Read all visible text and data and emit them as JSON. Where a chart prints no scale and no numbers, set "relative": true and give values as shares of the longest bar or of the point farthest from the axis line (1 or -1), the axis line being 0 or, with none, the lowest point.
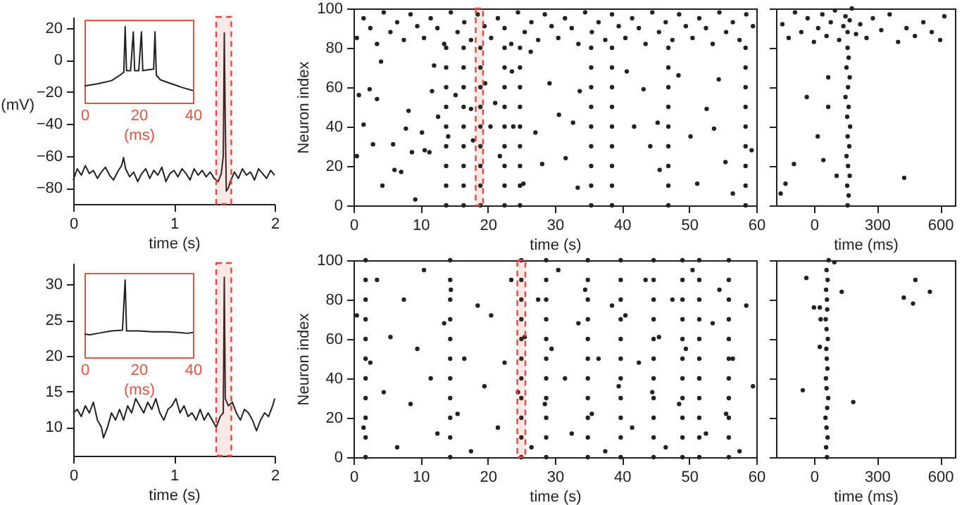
{
  "chart_data": [
    {
      "type": "line",
      "ylabel": "(mV)",
      "xlabel": "time (s)",
      "xlim": [
        0,
        2
      ],
      "xticks": [
        0,
        1,
        2
      ],
      "ylim": [
        -90,
        27
      ],
      "yticks": [
        -80,
        -60,
        -40,
        -20,
        0,
        20
      ],
      "color": "#222222",
      "x": [
        0,
        0.04,
        0.08,
        0.12,
        0.16,
        0.2,
        0.24,
        0.28,
        0.32,
        0.36,
        0.4,
        0.44,
        0.48,
        0.5,
        0.52,
        0.56,
        0.6,
        0.64,
        0.68,
        0.72,
        0.76,
        0.8,
        0.84,
        0.88,
        0.92,
        0.96,
        1.0,
        1.04,
        1.08,
        1.12,
        1.16,
        1.2,
        1.24,
        1.28,
        1.32,
        1.36,
        1.4,
        1.44,
        1.47,
        1.49,
        1.5,
        1.51,
        1.52,
        1.54,
        1.56,
        1.6,
        1.64,
        1.68,
        1.72,
        1.76,
        1.8,
        1.84,
        1.88,
        1.92,
        1.96,
        2.0
      ],
      "values": [
        -75,
        -68,
        -72,
        -66,
        -71,
        -69,
        -74,
        -70,
        -67,
        -72,
        -75,
        -70,
        -66,
        -61,
        -68,
        -73,
        -70,
        -76,
        -71,
        -68,
        -74,
        -69,
        -72,
        -67,
        -76,
        -71,
        -69,
        -73,
        -68,
        -71,
        -75,
        -68,
        -72,
        -69,
        -73,
        -70,
        -74,
        -76,
        -71,
        -60,
        17,
        -40,
        -82,
        -80,
        -76,
        -70,
        -74,
        -68,
        -72,
        -70,
        -75,
        -68,
        -71,
        -74,
        -69,
        -72
      ],
      "bands": [
        {
          "axis": "x",
          "from": 1.42,
          "to": 1.57,
          "color": "#e8473b"
        }
      ]
    },
    {
      "type": "line",
      "relative": true,
      "xlabel": "(ms)",
      "xlim": [
        0,
        40
      ],
      "xticks": [
        0,
        20,
        40
      ],
      "tick_labels": "x",
      "color": "#222222",
      "x": [
        0,
        5,
        10,
        13,
        14.5,
        15,
        15.5,
        17,
        18,
        18.5,
        20,
        21,
        21.5,
        23,
        25.5,
        26,
        26.5,
        28,
        32,
        36,
        40
      ],
      "values": [
        0.22,
        0.25,
        0.29,
        0.36,
        0.4,
        1,
        0.42,
        0.42,
        0.93,
        0.42,
        0.42,
        0.93,
        0.42,
        0.43,
        0.44,
        0.93,
        0.36,
        0.3,
        0.25,
        0.2,
        0.16
      ]
    },
    {
      "type": "scatter",
      "marker": "circle",
      "ylabel": "Neuron index",
      "xlabel": "time (s)",
      "xlim": [
        0,
        60
      ],
      "xticks": [
        0,
        10,
        20,
        30,
        40,
        50,
        60
      ],
      "ylim": [
        0,
        100
      ],
      "yticks": [
        0,
        20,
        40,
        60,
        80,
        100
      ],
      "series": [
        {
          "color": "#222222",
          "x": [
            13.8,
            13.8,
            13.8,
            13.8,
            13.8,
            13.8,
            13.8,
            13.8,
            13.8,
            16.4,
            16.4,
            16.4,
            16.4,
            16.4,
            16.4,
            16.4,
            16.4,
            16.4,
            18.9,
            18.9,
            18.9,
            18.9,
            18.9,
            18.9,
            18.9,
            18.9,
            18.9,
            22.5,
            22.5,
            22.5,
            22.5,
            22.5,
            22.5,
            22.5,
            22.5,
            22.5,
            24.8,
            24.8,
            24.8,
            24.8,
            24.8,
            24.8,
            24.8,
            24.8,
            24.8,
            35.4,
            35.4,
            35.4,
            35.4,
            35.4,
            35.4,
            35.4,
            35.4,
            35.4,
            38.5,
            38.5,
            38.5,
            38.5,
            38.5,
            38.5,
            38.5,
            38.5,
            38.5,
            46.9,
            46.9,
            46.9,
            46.9,
            46.9,
            46.9,
            46.9,
            46.9,
            46.9,
            58.4,
            58.4,
            58.4,
            58.4,
            58.4,
            58.4,
            58.4,
            58.4,
            58.4
          ],
          "values": [
            0,
            10,
            20,
            30,
            40,
            50,
            60,
            70,
            80,
            0,
            10,
            20,
            30,
            40,
            50,
            60,
            70,
            80,
            0,
            10,
            20,
            30,
            40,
            50,
            60,
            70,
            80,
            0,
            10,
            20,
            30,
            40,
            50,
            60,
            70,
            80,
            0,
            10,
            20,
            30,
            40,
            50,
            60,
            70,
            80,
            0,
            10,
            20,
            30,
            40,
            50,
            60,
            70,
            80,
            0,
            10,
            20,
            30,
            40,
            50,
            60,
            70,
            80,
            0,
            10,
            20,
            30,
            40,
            50,
            60,
            70,
            80,
            0,
            10,
            20,
            30,
            40,
            50,
            60,
            70,
            80
          ]
        },
        {
          "color": "#222222",
          "x": [
            0.5,
            1.5,
            2.5,
            3.5,
            4.5,
            5.5,
            6.5,
            7.5,
            8.5,
            9.5,
            10.5,
            11.5,
            12.5,
            13.5,
            14.5,
            15.5,
            16.5,
            17.5,
            18.5,
            19.5,
            20.5,
            21.5,
            22.5,
            23.5,
            24.5,
            25.5,
            26.5,
            27.5,
            28.5,
            29.5,
            30.5,
            31.5,
            32.5,
            33.5,
            34.5,
            35.5,
            36.5,
            37.5,
            38.5,
            39.5,
            40.5,
            41.5,
            42.5,
            43.5,
            44.5,
            45.5,
            46.5,
            47.5,
            48.5,
            49.5,
            50.5,
            51.5,
            52.5,
            53.5,
            54.5,
            55.5,
            56.5,
            57.5,
            58.5,
            59.5
          ],
          "values": [
            85,
            95,
            90,
            82,
            98,
            88,
            93,
            84,
            97,
            91,
            85,
            95,
            90,
            82,
            98,
            88,
            93,
            84,
            97,
            91,
            85,
            95,
            90,
            82,
            98,
            88,
            93,
            84,
            97,
            91,
            85,
            95,
            90,
            82,
            98,
            88,
            93,
            84,
            97,
            91,
            85,
            95,
            90,
            82,
            98,
            88,
            93,
            84,
            97,
            91,
            85,
            95,
            90,
            82,
            98,
            88,
            93,
            84,
            97,
            91
          ]
        },
        {
          "color": "#222222",
          "x": [
            0.5,
            0.8,
            1.5,
            2.9,
            3.5,
            2.4,
            4.1,
            4.3,
            6.1,
            5.9,
            7.1,
            7.8,
            8.2,
            8.7,
            9.2,
            10.2,
            10.6,
            11.3,
            11.7,
            12,
            12.6,
            14.1,
            15.2,
            17.5,
            17.8,
            19.6,
            20.4,
            21.1,
            21.8,
            23.6,
            23.8,
            25.3,
            26.4,
            27.1,
            28.1,
            29.2,
            30.6,
            31.6,
            32.7,
            33.4,
            33.7,
            40.7,
            41.8,
            43.2,
            44.2,
            45.3,
            45.6,
            48.4,
            50.2,
            51.2,
            52.6,
            53.7,
            54.4,
            55.4,
            56.5,
            59.3
          ],
          "values": [
            25,
            56,
            41,
            31,
            54,
            59,
            73,
            10,
            18,
            31,
            17,
            39,
            48,
            27,
            3,
            37,
            28,
            27,
            58,
            71,
            45,
            35,
            56,
            49,
            33,
            62,
            40,
            52,
            25,
            68,
            40,
            11,
            78,
            37,
            21,
            62,
            46,
            24,
            42,
            9,
            58,
            68,
            40,
            59,
            30,
            42,
            18,
            66,
            35,
            11,
            49,
            39,
            64,
            22,
            6,
            28
          ]
        }
      ],
      "bands": [
        {
          "axis": "x",
          "from": 18.2,
          "to": 19.3,
          "color": "#e8473b"
        }
      ]
    },
    {
      "type": "scatter",
      "marker": "circle",
      "xlabel": "time (ms)",
      "xlim": [
        -180,
        670
      ],
      "xticks": [
        0,
        300,
        600
      ],
      "ylim": [
        0,
        100
      ],
      "yticks": [
        0,
        20,
        40,
        60,
        80,
        100
      ],
      "tick_labels": "x",
      "series": [
        {
          "color": "#222222",
          "x": [
            160,
            165,
            158,
            170,
            162,
            155,
            168,
            160,
            172,
            158,
            165,
            150,
            162,
            170,
            155,
            165,
            160
          ],
          "values": [
            0,
            5,
            10,
            15,
            20,
            25,
            30,
            35,
            40,
            45,
            50,
            55,
            60,
            65,
            70,
            75,
            80
          ]
        },
        {
          "color": "#222222",
          "x": [
            -150,
            -120,
            -90,
            -60,
            -30,
            0,
            20,
            40,
            60,
            80,
            100,
            120,
            140,
            150,
            160,
            170,
            180,
            200,
            220,
            250,
            280,
            320,
            360,
            400,
            440,
            480,
            520,
            560,
            600,
            620
          ],
          "values": [
            92,
            85,
            98,
            88,
            95,
            83,
            90,
            97,
            86,
            93,
            99,
            84,
            91,
            96,
            88,
            94,
            100,
            87,
            92,
            85,
            95,
            89,
            97,
            83,
            90,
            86,
            93,
            88,
            84,
            96
          ]
        },
        {
          "color": "#222222",
          "x": [
            -95,
            -135,
            -158,
            -34,
            68,
            68,
            18,
            45,
            429,
            108
          ],
          "values": [
            21,
            11,
            6,
            55,
            50,
            65,
            35,
            23,
            14,
            15
          ]
        }
      ]
    },
    {
      "type": "line",
      "xlabel": "time (s)",
      "xlim": [
        0,
        2
      ],
      "xticks": [
        0,
        1,
        2
      ],
      "ylim": [
        6,
        33
      ],
      "yticks": [
        10,
        15,
        20,
        25,
        30
      ],
      "color": "#222222",
      "x": [
        0,
        0.04,
        0.08,
        0.12,
        0.16,
        0.2,
        0.24,
        0.28,
        0.3,
        0.34,
        0.38,
        0.42,
        0.46,
        0.5,
        0.54,
        0.58,
        0.62,
        0.66,
        0.7,
        0.74,
        0.78,
        0.82,
        0.86,
        0.9,
        0.94,
        0.98,
        1.02,
        1.06,
        1.1,
        1.14,
        1.18,
        1.22,
        1.26,
        1.3,
        1.34,
        1.38,
        1.42,
        1.46,
        1.49,
        1.5,
        1.51,
        1.54,
        1.58,
        1.62,
        1.66,
        1.7,
        1.74,
        1.78,
        1.82,
        1.86,
        1.9,
        1.94,
        1.98,
        2.0
      ],
      "values": [
        12,
        12.5,
        11.5,
        13,
        12,
        13.5,
        11,
        10,
        8.5,
        10,
        12,
        11,
        12.5,
        11,
        13,
        12,
        14,
        13,
        12,
        13.5,
        12.5,
        14,
        12,
        11,
        12.5,
        13,
        14,
        12,
        13,
        11.5,
        12,
        11,
        12.5,
        11,
        12,
        11,
        10,
        11.5,
        12,
        31,
        14,
        13,
        13.5,
        12,
        11,
        12.5,
        12,
        11,
        9.5,
        11,
        12,
        11.5,
        13,
        14
      ],
      "bands": [
        {
          "axis": "x",
          "from": 1.42,
          "to": 1.57,
          "color": "#e8473b"
        }
      ]
    },
    {
      "type": "line",
      "relative": true,
      "xlabel": "(ms)",
      "xlim": [
        0,
        40
      ],
      "xticks": [
        0,
        20,
        40
      ],
      "tick_labels": "x",
      "color": "#222222",
      "x": [
        0,
        2,
        5,
        10,
        14,
        15,
        15.5,
        20,
        25,
        30,
        35,
        38,
        40
      ],
      "values": [
        0.3,
        0.29,
        0.31,
        0.34,
        0.35,
        1,
        0.34,
        0.34,
        0.33,
        0.33,
        0.32,
        0.31,
        0.32
      ]
    },
    {
      "type": "scatter",
      "marker": "circle",
      "ylabel": "Neuron index",
      "xlabel": "time (s)",
      "xlim": [
        0,
        60
      ],
      "xticks": [
        0,
        10,
        20,
        30,
        40,
        50,
        60
      ],
      "ylim": [
        0,
        100
      ],
      "yticks": [
        0,
        20,
        40,
        60,
        80,
        100
      ],
      "series": [
        {
          "color": "#222222",
          "x": [
            1.8,
            1.8,
            1.8,
            1.8,
            1.8,
            1.8,
            1.8,
            1.8,
            1.8,
            1.8,
            1.8,
            14.4,
            14.4,
            14.4,
            14.4,
            14.4,
            14.4,
            14.4,
            14.4,
            14.4,
            14.4,
            14.4,
            25,
            25,
            25,
            25,
            25,
            25,
            25,
            25,
            25,
            25,
            25,
            28.7,
            28.7,
            28.7,
            28.7,
            28.7,
            28.7,
            28.7,
            28.7,
            28.7,
            28.7,
            28.7,
            34.9,
            34.9,
            34.9,
            34.9,
            34.9,
            34.9,
            34.9,
            34.9,
            34.9,
            34.9,
            34.9,
            39.8,
            39.8,
            39.8,
            39.8,
            39.8,
            39.8,
            39.8,
            39.8,
            39.8,
            39.8,
            39.8,
            44.7,
            44.7,
            44.7,
            44.7,
            44.7,
            44.7,
            44.7,
            44.7,
            44.7,
            44.7,
            44.7,
            49,
            49,
            49,
            49,
            49,
            49,
            49,
            49,
            49,
            49,
            49,
            51.5,
            51.5,
            51.5,
            51.5,
            51.5,
            51.5,
            51.5,
            51.5,
            51.5,
            51.5,
            51.5,
            55.9,
            55.9,
            55.9,
            55.9,
            55.9,
            55.9,
            55.9,
            55.9,
            55.9,
            55.9,
            55.9
          ],
          "values": [
            0,
            10,
            20,
            30,
            40,
            50,
            60,
            70,
            80,
            90,
            100,
            0,
            10,
            20,
            30,
            40,
            50,
            60,
            70,
            80,
            90,
            100,
            0,
            10,
            20,
            30,
            40,
            50,
            60,
            70,
            80,
            90,
            100,
            0,
            10,
            20,
            30,
            40,
            50,
            60,
            70,
            80,
            90,
            100,
            0,
            10,
            20,
            30,
            40,
            50,
            60,
            70,
            80,
            90,
            100,
            0,
            10,
            20,
            30,
            40,
            50,
            60,
            70,
            80,
            90,
            100,
            0,
            10,
            20,
            30,
            40,
            50,
            60,
            70,
            80,
            90,
            100,
            0,
            10,
            20,
            30,
            40,
            50,
            60,
            70,
            80,
            90,
            100,
            0,
            10,
            20,
            30,
            40,
            50,
            60,
            70,
            80,
            90,
            100,
            0,
            10,
            20,
            30,
            40,
            50,
            60,
            70,
            80,
            90,
            100
          ]
        },
        {
          "color": "#222222",
          "x": [
            0.5,
            1.5,
            2.5,
            3.5,
            4.5,
            5.5,
            6.5,
            7.5,
            8.5,
            9.5,
            10.5,
            11.5,
            12.5,
            13.5,
            14.5,
            15.5,
            16.5,
            17.5,
            18.5,
            19.5,
            20.5,
            21.5,
            22.5,
            23.5,
            24.5,
            25.5,
            26.5,
            27.5,
            28.5,
            29.5,
            30.5,
            31.5,
            32.5,
            33.5,
            34.5,
            35.5,
            36.5,
            37.5,
            38.5,
            39.5,
            40.5,
            41.5,
            42.5,
            43.5,
            44.5,
            45.5,
            46.5,
            47.5,
            48.5,
            49.5,
            50.5,
            51.5,
            52.5,
            53.5,
            54.5,
            55.5,
            56.5,
            57.5,
            58.5,
            59.5
          ],
          "values": [
            72,
            15,
            48,
            90,
            33,
            61,
            5,
            80,
            27,
            55,
            95,
            40,
            12,
            68,
            85,
            22,
            50,
            3,
            77,
            36,
            72,
            15,
            48,
            90,
            33,
            61,
            5,
            80,
            27,
            55,
            95,
            40,
            12,
            68,
            85,
            22,
            50,
            3,
            77,
            36,
            72,
            15,
            48,
            90,
            33,
            61,
            5,
            80,
            27,
            55,
            95,
            40,
            12,
            68,
            85,
            22,
            50,
            3,
            77,
            36
          ]
        }
      ],
      "bands": [
        {
          "axis": "x",
          "from": 24.4,
          "to": 25.6,
          "color": "#e8473b"
        }
      ]
    },
    {
      "type": "scatter",
      "marker": "circle",
      "xlabel": "time (ms)",
      "xlim": [
        -180,
        670
      ],
      "xticks": [
        0,
        300,
        600
      ],
      "ylim": [
        0,
        100
      ],
      "yticks": [
        0,
        20,
        40,
        60,
        80,
        100
      ],
      "tick_labels": "x",
      "series": [
        {
          "color": "#222222",
          "x": [
            62,
            58,
            65,
            60,
            55,
            63,
            68,
            60,
            57,
            64,
            61,
            59,
            66,
            60,
            56,
            63,
            62,
            58,
            65,
            60,
            70
          ],
          "values": [
            0,
            5,
            10,
            15,
            20,
            25,
            30,
            35,
            40,
            45,
            50,
            55,
            60,
            65,
            70,
            75,
            80,
            85,
            90,
            95,
            100
          ]
        },
        {
          "color": "#222222",
          "x": [
            -36,
            132,
            482,
            551,
            427,
            471,
            0,
            28,
            32,
            -53,
            187,
            97,
            28
          ],
          "values": [
            91,
            84,
            90,
            84,
            81,
            78,
            76,
            76,
            70,
            34,
            28,
            99,
            56
          ]
        }
      ]
    }
  ]
}
